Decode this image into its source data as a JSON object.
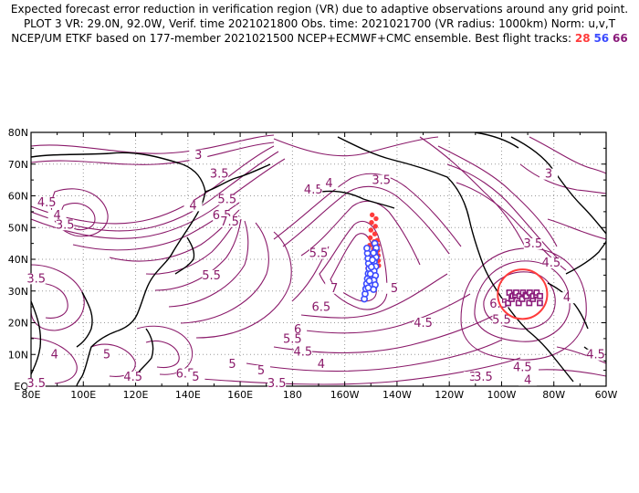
{
  "header": {
    "line1": "Expected forecast error reduction in verification region (VR) due to adaptive observations around any grid point.",
    "line2": "PLOT 3 VR: 29.0N, 92.0W, Verif. time 2021021800 Obs. time: 2021021700 (VR radius: 1000km) Norm: u,v,T",
    "line3_prefix": "NCEP/UM ETKF based on 177-member 2021021500 NCEP+ECMWF+CMC ensemble. Best flight tracks:",
    "track_a": "28",
    "track_b": "56",
    "track_c": "66"
  },
  "map": {
    "lat_labels": [
      "80N",
      "70N",
      "60N",
      "50N",
      "40N",
      "30N",
      "20N",
      "10N",
      "EQ"
    ],
    "lon_labels": [
      "80E",
      "100E",
      "120E",
      "140E",
      "160E",
      "180",
      "160W",
      "140W",
      "120W",
      "100W",
      "80W",
      "60W"
    ],
    "contour_labels": [
      {
        "text": "3",
        "lon": 144,
        "lat": 72
      },
      {
        "text": "3.5",
        "lon": 152,
        "lat": 66
      },
      {
        "text": "4.5",
        "lon": 86,
        "lat": 57
      },
      {
        "text": "4",
        "lon": 90,
        "lat": 53
      },
      {
        "text": "3.5",
        "lon": 93,
        "lat": 50
      },
      {
        "text": "4",
        "lon": 142,
        "lat": 56
      },
      {
        "text": "5.5",
        "lon": 155,
        "lat": 58
      },
      {
        "text": "6.5",
        "lon": 153,
        "lat": 53
      },
      {
        "text": "7.5",
        "lon": 156,
        "lat": 51
      },
      {
        "text": "3.5",
        "lon": 82,
        "lat": 33
      },
      {
        "text": "5.5",
        "lon": 149,
        "lat": 34
      },
      {
        "text": "4.5",
        "lon": 188,
        "lat": 61
      },
      {
        "text": "4",
        "lon": 194,
        "lat": 63
      },
      {
        "text": "3.5",
        "lon": 214,
        "lat": 64
      },
      {
        "text": "5.5",
        "lon": 190,
        "lat": 41
      },
      {
        "text": "7",
        "lon": 196,
        "lat": 30
      },
      {
        "text": "6.5",
        "lon": 191,
        "lat": 24
      },
      {
        "text": "5",
        "lon": 219,
        "lat": 30
      },
      {
        "text": "6",
        "lon": 182,
        "lat": 17
      },
      {
        "text": "5.5",
        "lon": 180,
        "lat": 14
      },
      {
        "text": "4.5",
        "lon": 184,
        "lat": 10
      },
      {
        "text": "5",
        "lon": 157,
        "lat": 6
      },
      {
        "text": "4",
        "lon": 191,
        "lat": 6
      },
      {
        "text": "4.5",
        "lon": 230,
        "lat": 19
      },
      {
        "text": "4",
        "lon": 89,
        "lat": 9
      },
      {
        "text": "5",
        "lon": 109,
        "lat": 9
      },
      {
        "text": "6.5",
        "lon": 139,
        "lat": 3
      },
      {
        "text": "5",
        "lon": 143,
        "lat": 2
      },
      {
        "text": "4.5",
        "lon": 119,
        "lat": 2
      },
      {
        "text": "3.5",
        "lon": 82,
        "lat": 0
      },
      {
        "text": "5",
        "lon": 168,
        "lat": 4
      },
      {
        "text": "3.5",
        "lon": 174,
        "lat": 0
      },
      {
        "text": "3",
        "lon": 249,
        "lat": 2
      },
      {
        "text": "3.5",
        "lon": 253,
        "lat": 2
      },
      {
        "text": "4.5",
        "lon": 268,
        "lat": 5
      },
      {
        "text": "4",
        "lon": 270,
        "lat": 1
      },
      {
        "text": "4.5",
        "lon": 296,
        "lat": 9
      },
      {
        "text": "6.5",
        "lon": 259,
        "lat": 25
      },
      {
        "text": "5.5",
        "lon": 260,
        "lat": 20
      },
      {
        "text": "4",
        "lon": 285,
        "lat": 27
      },
      {
        "text": "4.5",
        "lon": 279,
        "lat": 38
      },
      {
        "text": "3.5",
        "lon": 272,
        "lat": 44
      },
      {
        "text": "3",
        "lon": 278,
        "lat": 66
      }
    ],
    "verification_region": {
      "lat": 29.0,
      "lon_w": 92.0,
      "radius_km": 1000,
      "color": "#ff3b3b"
    },
    "colors": {
      "contour": "#8a1a6a",
      "track28": "#ff3b3b",
      "track56": "#3b4bff",
      "track66": "#8a1a7a",
      "coast": "#000000",
      "grid": "#999999"
    }
  }
}
